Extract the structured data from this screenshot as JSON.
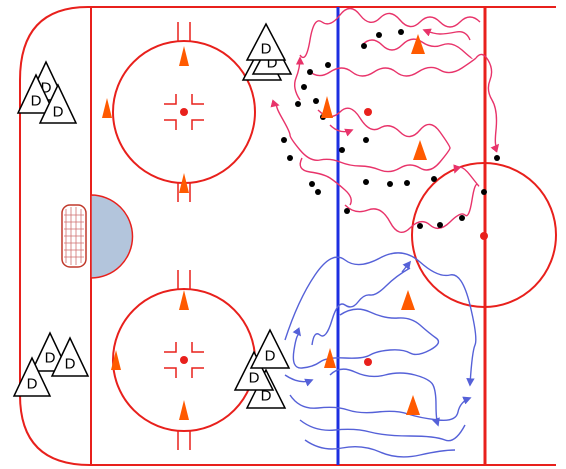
{
  "diagram": {
    "colors": {
      "rink_line": "#e8201c",
      "blue_line": "#1c2fe0",
      "crease_fill": "#b3c5dc",
      "cone": "#ff5a00",
      "skate_red": "#e8336a",
      "skate_blue": "#5561d8",
      "puck": "#000000",
      "faceoff_dot": "#e8201c"
    },
    "defender_label": "D",
    "defender_stacks_count": 4,
    "cones_count": 14,
    "icons": [
      "cone-icon",
      "defender-triangle-icon",
      "puck-icon",
      "net-icon",
      "faceoff-dot-icon"
    ]
  }
}
